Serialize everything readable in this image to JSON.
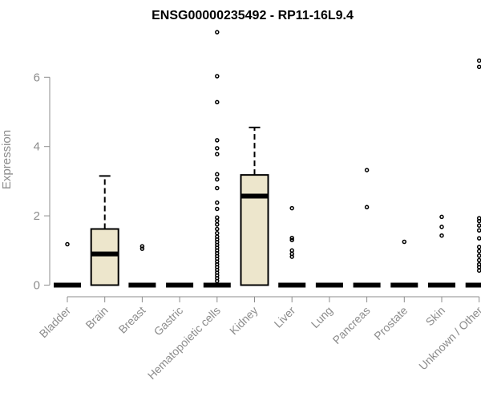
{
  "chart_data": {
    "type": "box",
    "title": "ENSG00000235492 - RP11-16L9.4",
    "ylabel": "Expression",
    "xlabel": "",
    "ylim": [
      0,
      7.5
    ],
    "yticks": [
      0,
      2,
      4,
      6
    ],
    "ytick_labels": [
      "0",
      "2",
      "4",
      "6"
    ],
    "grid": false,
    "colors": {
      "box_fill": "#ede6cc",
      "stroke": "#000000",
      "axis_text": "#8c8c8c"
    },
    "categories": [
      "Bladder",
      "Brain",
      "Breast",
      "Gastric",
      "Hematopoietic cells",
      "Kidney",
      "Liver",
      "Lung",
      "Pancreas",
      "Prostate",
      "Skin",
      "Unknown / Other"
    ],
    "boxes": [
      {
        "category": "Bladder",
        "q1": 0,
        "median": 0,
        "q3": 0,
        "whisker_low": 0,
        "whisker_high": 0,
        "outliers": [
          1.18
        ]
      },
      {
        "category": "Brain",
        "q1": 0,
        "median": 0.9,
        "q3": 1.62,
        "whisker_low": 0,
        "whisker_high": 3.15,
        "outliers": []
      },
      {
        "category": "Breast",
        "q1": 0,
        "median": 0,
        "q3": 0,
        "whisker_low": 0,
        "whisker_high": 0,
        "outliers": [
          1.05,
          1.12
        ]
      },
      {
        "category": "Gastric",
        "q1": 0,
        "median": 0,
        "q3": 0,
        "whisker_low": 0,
        "whisker_high": 0,
        "outliers": []
      },
      {
        "category": "Hematopoietic cells",
        "q1": 0,
        "median": 0,
        "q3": 0,
        "whisker_low": 0,
        "whisker_high": 0,
        "outliers": [
          0.12,
          0.2,
          0.28,
          0.36,
          0.44,
          0.52,
          0.6,
          0.68,
          0.76,
          0.84,
          0.92,
          1.0,
          1.08,
          1.16,
          1.24,
          1.32,
          1.4,
          1.5,
          1.62,
          1.75,
          1.85,
          1.95,
          2.2,
          2.38,
          2.8,
          3.05,
          3.2,
          3.78,
          3.95,
          4.18,
          5.28,
          6.03,
          7.3
        ]
      },
      {
        "category": "Kidney",
        "q1": 0,
        "median": 2.57,
        "q3": 3.18,
        "whisker_low": 0,
        "whisker_high": 4.55,
        "outliers": []
      },
      {
        "category": "Liver",
        "q1": 0,
        "median": 0,
        "q3": 0,
        "whisker_low": 0,
        "whisker_high": 0,
        "outliers": [
          0.82,
          0.9,
          1.0,
          1.3,
          1.36,
          2.22
        ]
      },
      {
        "category": "Lung",
        "q1": 0,
        "median": 0,
        "q3": 0,
        "whisker_low": 0,
        "whisker_high": 0,
        "outliers": []
      },
      {
        "category": "Pancreas",
        "q1": 0,
        "median": 0,
        "q3": 0,
        "whisker_low": 0,
        "whisker_high": 0,
        "outliers": [
          2.25,
          3.32
        ]
      },
      {
        "category": "Prostate",
        "q1": 0,
        "median": 0,
        "q3": 0,
        "whisker_low": 0,
        "whisker_high": 0,
        "outliers": [
          1.25
        ]
      },
      {
        "category": "Skin",
        "q1": 0,
        "median": 0,
        "q3": 0,
        "whisker_low": 0,
        "whisker_high": 0,
        "outliers": [
          1.43,
          1.68,
          1.97
        ]
      },
      {
        "category": "Unknown / Other",
        "q1": 0,
        "median": 0,
        "q3": 0,
        "whisker_low": 0,
        "whisker_high": 0,
        "outliers": [
          0.42,
          0.52,
          0.6,
          0.72,
          0.85,
          0.98,
          1.1,
          1.35,
          1.58,
          1.72,
          1.85,
          1.93,
          6.3,
          6.48
        ]
      }
    ]
  }
}
